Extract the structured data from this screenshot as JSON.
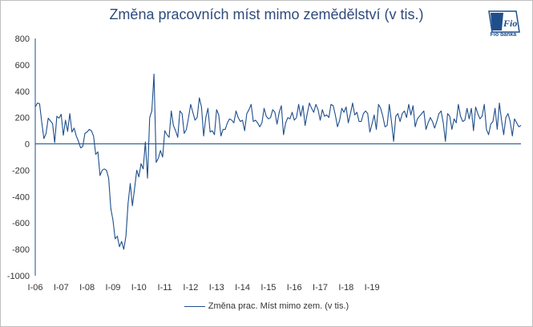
{
  "chart_data": {
    "type": "line",
    "title": "Změna pracovních míst mimo zemědělství (v tis.)",
    "xlabel": "",
    "ylabel": "",
    "ylim": [
      -1000,
      800
    ],
    "yticks": [
      800,
      600,
      400,
      200,
      0,
      -200,
      -400,
      -600,
      -800,
      -1000
    ],
    "xtick_labels": [
      "I-06",
      "I-07",
      "I-08",
      "I-09",
      "I-10",
      "I-11",
      "I-12",
      "I-13",
      "I-14",
      "I-15",
      "I-16",
      "I-17",
      "I-18",
      "I-19"
    ],
    "grid": false,
    "legend_position": "bottom",
    "series": [
      {
        "name": "Změna prac. Míst mimo zem. (v tis.)",
        "color": "#1f4e8c",
        "x_start": "2006-01",
        "values": [
          280,
          310,
          305,
          165,
          40,
          80,
          195,
          175,
          155,
          10,
          210,
          195,
          225,
          65,
          180,
          95,
          230,
          90,
          120,
          60,
          20,
          -30,
          -20,
          80,
          90,
          110,
          100,
          60,
          -80,
          -60,
          -240,
          -200,
          -190,
          -200,
          -260,
          -490,
          -580,
          -720,
          -700,
          -780,
          -740,
          -800,
          -700,
          -450,
          -300,
          -470,
          -340,
          -200,
          -250,
          -150,
          -190,
          15,
          -260,
          200,
          250,
          530,
          -140,
          -110,
          -50,
          -100,
          100,
          70,
          50,
          250,
          140,
          100,
          50,
          250,
          230,
          80,
          110,
          200,
          300,
          240,
          180,
          200,
          350,
          280,
          60,
          200,
          270,
          90,
          100,
          70,
          260,
          220,
          60,
          110,
          110,
          160,
          190,
          180,
          160,
          250,
          200,
          170,
          180,
          100,
          230,
          260,
          300,
          170,
          180,
          160,
          130,
          160,
          270,
          210,
          190,
          200,
          260,
          240,
          150,
          240,
          290,
          70,
          160,
          200,
          190,
          240,
          180,
          200,
          300,
          210,
          290,
          140,
          230,
          310,
          270,
          240,
          300,
          260,
          180,
          260,
          210,
          220,
          200,
          300,
          290,
          220,
          130,
          180,
          270,
          240,
          280,
          160,
          230,
          310,
          220,
          240,
          170,
          170,
          230,
          250,
          230,
          90,
          150,
          220,
          110,
          300,
          270,
          210,
          130,
          140,
          300,
          170,
          20,
          210,
          230,
          170,
          230,
          250,
          200,
          300,
          220,
          290,
          130,
          190,
          210,
          230,
          250,
          110,
          160,
          200,
          170,
          120,
          170,
          230,
          250,
          160,
          20,
          230,
          210,
          110,
          190,
          160,
          300,
          210,
          170,
          180,
          270,
          190,
          270,
          100,
          280,
          230,
          190,
          210,
          300,
          110,
          70,
          150,
          170,
          270,
          110,
          310,
          180,
          70,
          200,
          230,
          170,
          60,
          190,
          160,
          130,
          140
        ]
      }
    ]
  },
  "logo": {
    "text": "Fio",
    "caption": "Fio banka"
  }
}
